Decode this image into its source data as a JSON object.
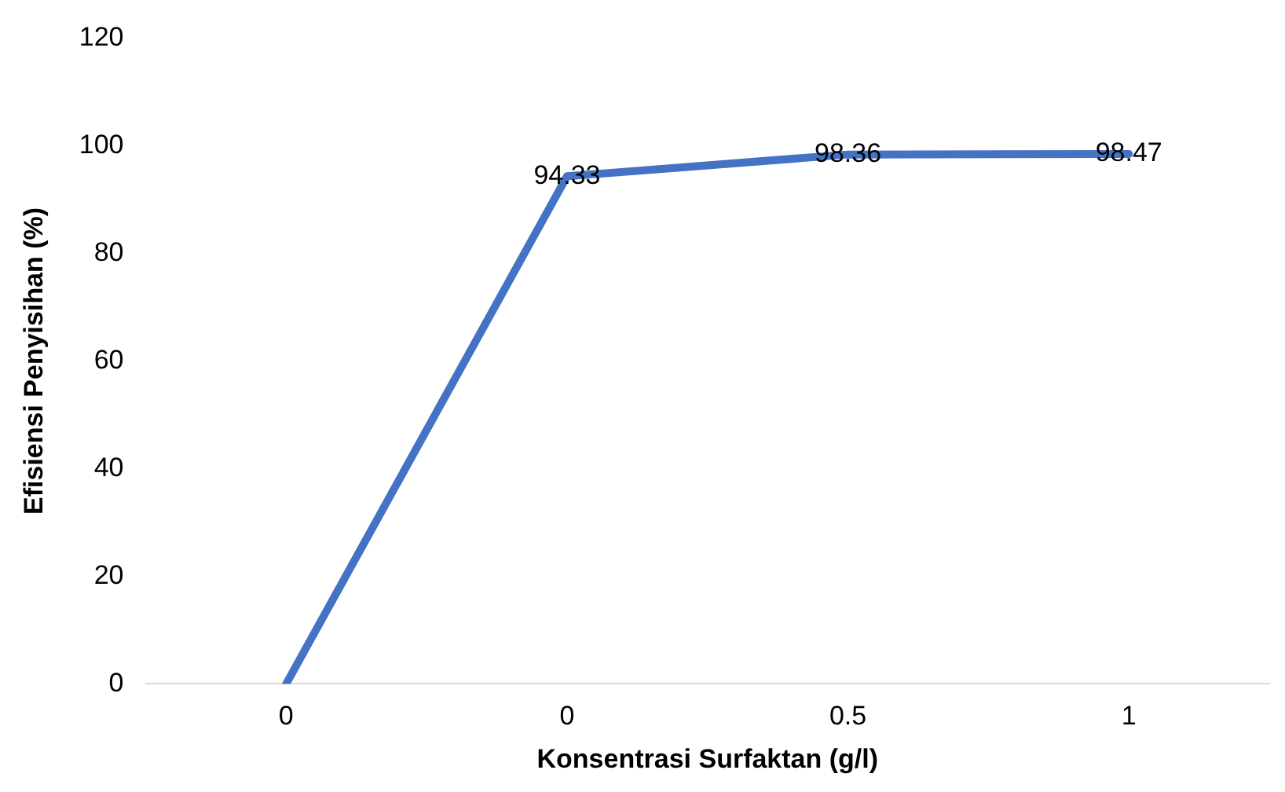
{
  "chart_data": {
    "type": "line",
    "xlabel": "Konsentrasi Surfaktan (g/l)",
    "ylabel": "Efisiensi Penyisihan (%)",
    "categories": [
      "0",
      "0",
      "0.5",
      "1"
    ],
    "series": [
      {
        "color": "#4472c4",
        "values": [
          0,
          94.33,
          98.36,
          98.47
        ],
        "value_labels": [
          null,
          "94.33",
          "98.36",
          "98.47"
        ]
      }
    ],
    "ylim": [
      0,
      120
    ],
    "yticks": [
      0,
      20,
      40,
      60,
      80,
      100,
      120
    ],
    "grid": false,
    "legend": false,
    "marker": "none",
    "line_style": "solid"
  }
}
